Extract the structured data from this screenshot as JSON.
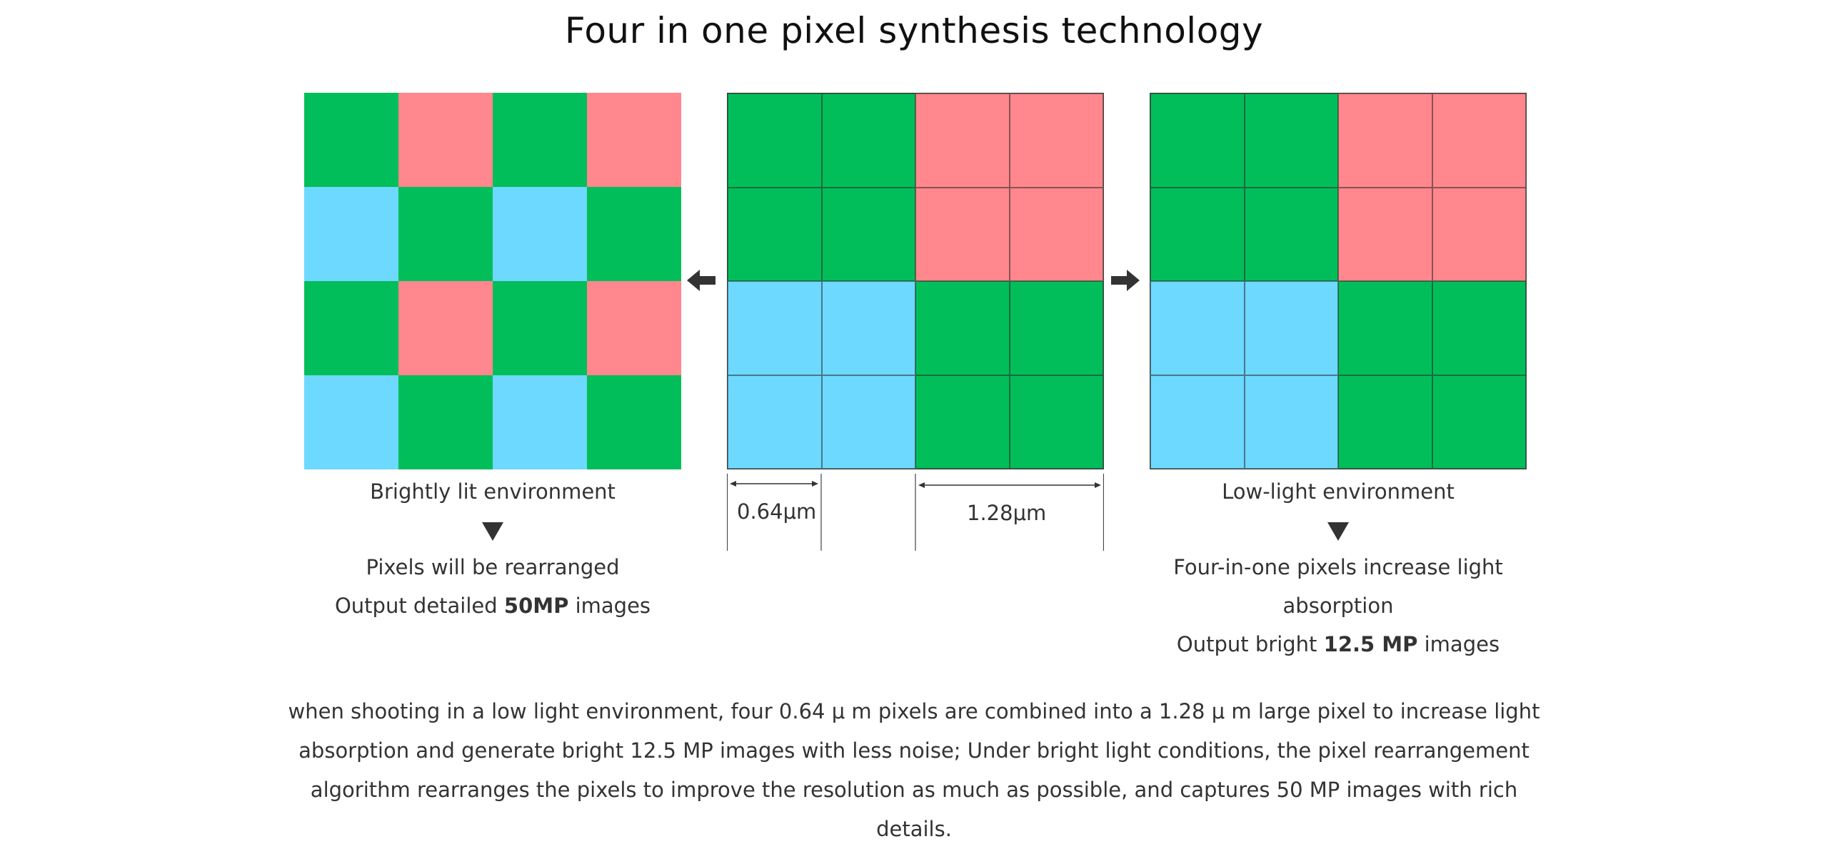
{
  "title": "Four in one pixel synthesis technology",
  "colors": {
    "green": "#02BE5A",
    "red": "#FF878D",
    "blue": "#6DD9FE"
  },
  "grids": {
    "left": [
      [
        "green",
        "red",
        "green",
        "red"
      ],
      [
        "blue",
        "green",
        "blue",
        "green"
      ],
      [
        "green",
        "red",
        "green",
        "red"
      ],
      [
        "blue",
        "green",
        "blue",
        "green"
      ]
    ],
    "middle": [
      [
        "green",
        "green",
        "red",
        "red"
      ],
      [
        "green",
        "green",
        "red",
        "red"
      ],
      [
        "blue",
        "blue",
        "green",
        "green"
      ],
      [
        "blue",
        "blue",
        "green",
        "green"
      ]
    ],
    "right": [
      [
        "green",
        "green",
        "red",
        "red"
      ],
      [
        "green",
        "green",
        "red",
        "red"
      ],
      [
        "blue",
        "blue",
        "green",
        "green"
      ],
      [
        "blue",
        "blue",
        "green",
        "green"
      ]
    ]
  },
  "left_caption": {
    "heading": "Brightly lit environment",
    "line1": "Pixels will be rearranged",
    "line2_pre": "Output detailed ",
    "line2_bold": "50MP",
    "line2_post": " images"
  },
  "right_caption": {
    "heading": "Low-light environment",
    "line1": "Four-in-one pixels increase light absorption",
    "line2_pre": "Output bright ",
    "line2_bold": "12.5 MP",
    "line2_post": " images"
  },
  "measurements": {
    "small": "0.64μm",
    "large": "1.28μm"
  },
  "description": "when shooting in a low light environment, four 0.64 μ m pixels are combined into a 1.28 μ m large pixel to increase light absorption and generate bright 12.5 MP images with less noise; Under bright light conditions, the pixel rearrangement algorithm rearranges the pixels to improve the resolution as much as possible, and captures 50 MP images with rich details."
}
